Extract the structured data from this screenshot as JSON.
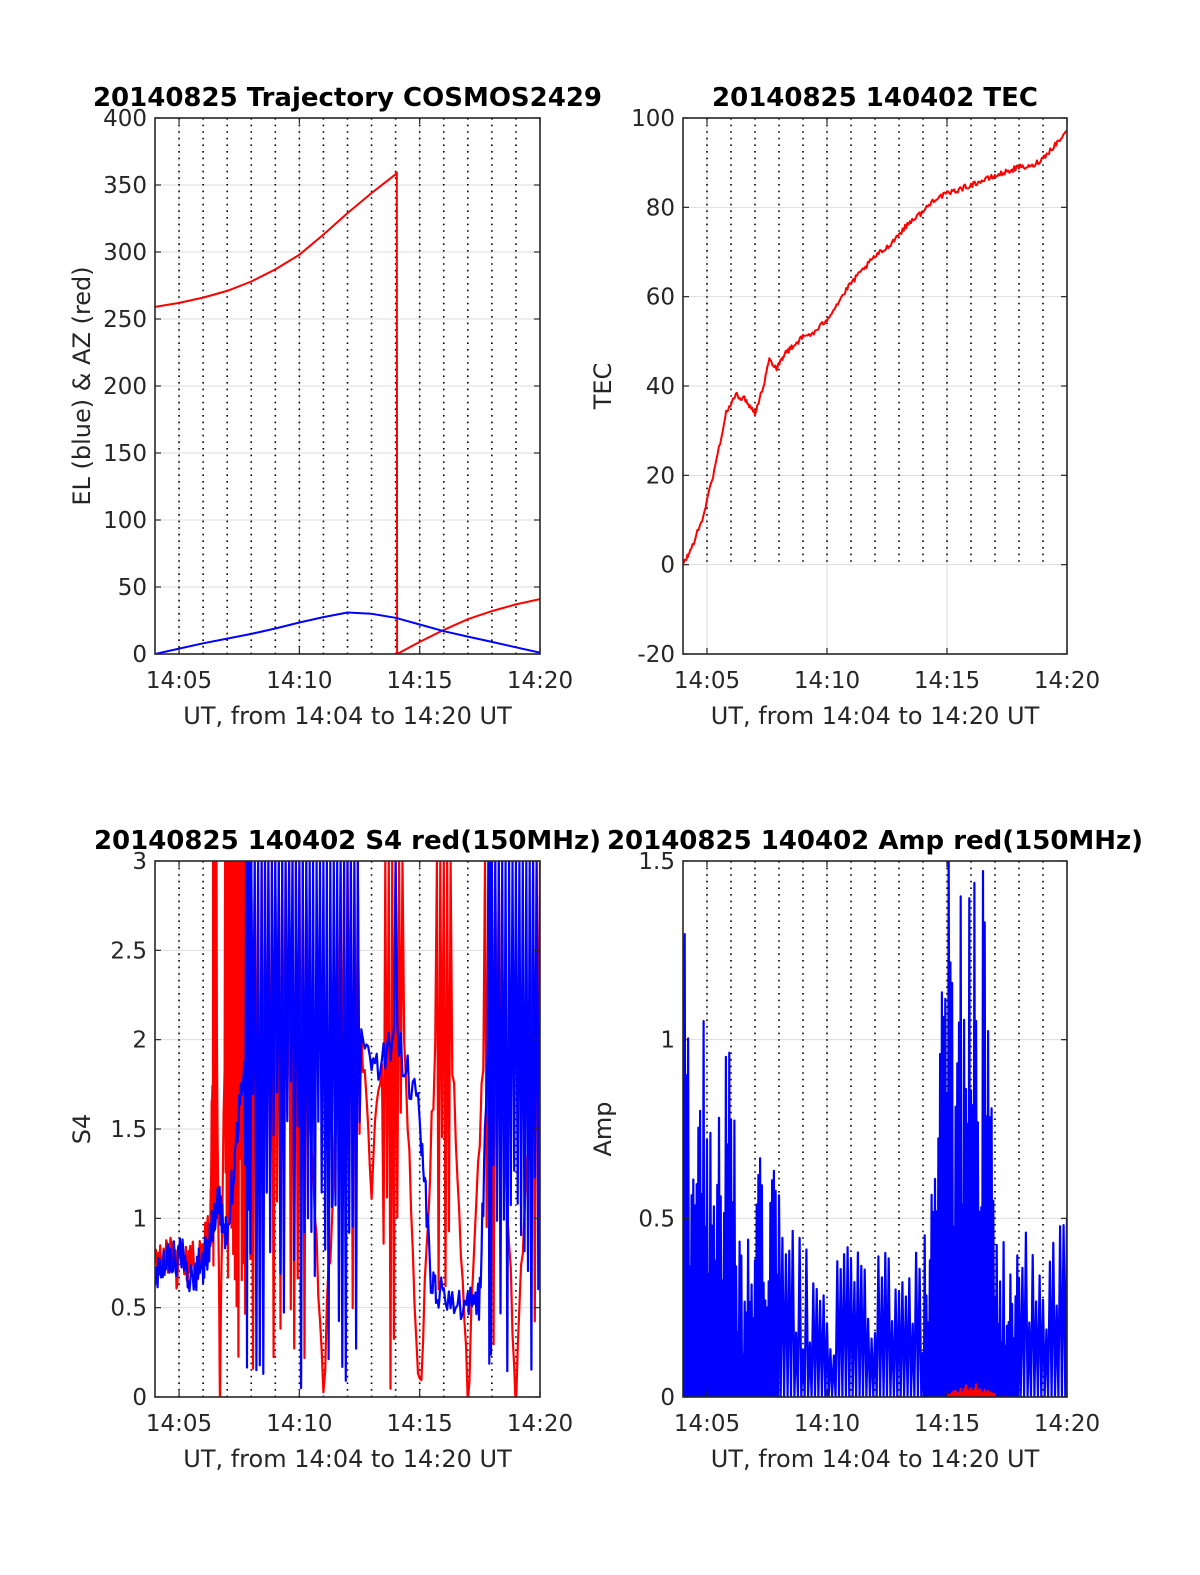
{
  "figure": {
    "background": "#ffffff"
  },
  "chart_data": [
    {
      "id": "trajectory",
      "type": "line",
      "title": "20140825 Trajectory COSMOS2429",
      "xlabel": "UT, from 14:04 to 14:20 UT",
      "ylabel": "EL (blue) & AZ (red)",
      "xlim_minutes": [
        0,
        16
      ],
      "ylim": [
        0,
        400
      ],
      "xticks": [
        {
          "at": 1,
          "label": "14:05"
        },
        {
          "at": 6,
          "label": "14:10"
        },
        {
          "at": 11,
          "label": "14:15"
        },
        {
          "at": 16,
          "label": "14:20"
        }
      ],
      "yticks": [
        0,
        50,
        100,
        150,
        200,
        250,
        300,
        350,
        400
      ],
      "grid": true,
      "dotted_vlines_minutes": [
        1,
        2,
        3,
        4,
        5,
        6,
        7,
        8,
        9,
        10,
        11,
        12,
        13,
        14,
        15
      ],
      "series": [
        {
          "color": "#ff0000",
          "x": [
            0,
            1,
            2,
            3,
            4,
            5,
            6,
            7,
            8,
            9,
            10,
            10.05
          ],
          "y": [
            259,
            262,
            266,
            271,
            278,
            287,
            298,
            313,
            329,
            344,
            358,
            360
          ]
        },
        {
          "color": "#ff0000",
          "x": [
            10.05,
            10.06,
            11,
            12,
            13,
            14,
            15,
            16
          ],
          "y": [
            360,
            0,
            9,
            18,
            26,
            32,
            37,
            41
          ]
        },
        {
          "color": "#0000ff",
          "x": [
            0,
            1,
            2,
            3,
            4,
            5,
            6,
            7,
            8,
            9,
            10,
            11,
            12,
            13,
            14,
            15,
            16
          ],
          "y": [
            0,
            4,
            8,
            11.5,
            15,
            19,
            23.5,
            27.5,
            31,
            30,
            27,
            22,
            17,
            13,
            9,
            5,
            1
          ]
        }
      ]
    },
    {
      "id": "tec",
      "type": "line",
      "title": "20140825 140402 TEC",
      "xlabel": "UT, from 14:04 to 14:20 UT",
      "ylabel": "TEC",
      "xlim_minutes": [
        0,
        16
      ],
      "ylim": [
        -20,
        100
      ],
      "xticks": [
        {
          "at": 1,
          "label": "14:05"
        },
        {
          "at": 6,
          "label": "14:10"
        },
        {
          "at": 11,
          "label": "14:15"
        },
        {
          "at": 16,
          "label": "14:20"
        }
      ],
      "yticks": [
        -20,
        0,
        20,
        40,
        60,
        80,
        100
      ],
      "grid": true,
      "dotted_vlines_minutes": [
        1,
        2,
        3,
        4,
        5,
        6,
        7,
        8,
        9,
        10,
        11,
        12,
        13,
        14,
        15
      ],
      "series": [
        {
          "color": "#ff0000",
          "x": [
            0,
            0.3,
            0.8,
            1.3,
            1.8,
            2.2,
            2.6,
            3.0,
            3.3,
            3.6,
            3.9,
            4.2,
            4.6,
            5.0,
            5.5,
            6.0,
            6.5,
            7.0,
            7.5,
            8.0,
            8.5,
            9.0,
            9.5,
            10.0,
            10.5,
            11.0,
            11.5,
            12.0,
            12.5,
            13.0,
            13.5,
            14.0,
            14.5,
            15.0,
            15.5,
            16.0
          ],
          "y": [
            0,
            3,
            10,
            21,
            34,
            38,
            37,
            34,
            39,
            46,
            44,
            47,
            49,
            51,
            52,
            55,
            59,
            63,
            66,
            69,
            71,
            74,
            77,
            79,
            82,
            83,
            84,
            85,
            86,
            87,
            88,
            89,
            89,
            91,
            94,
            97
          ]
        }
      ]
    },
    {
      "id": "s4",
      "type": "line",
      "title": "20140825 140402 S4 red(150MHz)",
      "xlabel": "UT, from 14:04 to 14:20 UT",
      "ylabel": "S4",
      "xlim_minutes": [
        0,
        16
      ],
      "ylim": [
        0,
        3
      ],
      "xticks": [
        {
          "at": 1,
          "label": "14:05"
        },
        {
          "at": 6,
          "label": "14:10"
        },
        {
          "at": 11,
          "label": "14:15"
        },
        {
          "at": 16,
          "label": "14:20"
        }
      ],
      "yticks": [
        0,
        0.5,
        1,
        1.5,
        2,
        2.5,
        3
      ],
      "ytick_labels": [
        "0",
        "0.5",
        "1",
        "1.5",
        "2",
        "2.5",
        "3"
      ],
      "grid": true,
      "dotted_vlines_minutes": [
        1,
        2,
        3,
        4,
        5,
        6,
        7,
        8,
        9,
        10,
        11,
        12,
        13,
        14,
        15
      ],
      "series": [
        {
          "color": "#ff0000",
          "x": [
            0,
            0.5,
            1,
            1.5,
            2.0,
            2.3,
            2.5,
            2.7,
            3,
            3.5,
            4,
            5,
            6,
            7,
            8,
            9,
            10,
            11,
            12,
            13,
            14,
            15,
            16
          ],
          "y": [
            0.75,
            0.8,
            0.7,
            0.75,
            0.8,
            1.0,
            3,
            0,
            3,
            2.2,
            3,
            2.5,
            3,
            0,
            3,
            1.2,
            3,
            0,
            3,
            0,
            3,
            0,
            3
          ]
        },
        {
          "color": "#0000ff",
          "x": [
            0,
            0.5,
            1,
            1.5,
            2.0,
            2.3,
            2.6,
            3.0,
            3.5,
            4,
            5,
            6,
            7,
            8,
            9,
            10,
            11,
            11.5,
            12,
            13,
            13.5,
            14,
            15,
            16
          ],
          "y": [
            0.7,
            0.75,
            0.8,
            0.7,
            0.75,
            0.9,
            1.1,
            0.9,
            1.6,
            2.4,
            2.8,
            2.2,
            2.6,
            2.2,
            1.8,
            2.0,
            1.6,
            0.6,
            0.55,
            0.5,
            0.55,
            2.6,
            2.9,
            2.8
          ]
        }
      ]
    },
    {
      "id": "amp",
      "type": "line",
      "title": "20140825 140402 Amp red(150MHz)",
      "xlabel": "UT, from 14:04 to 14:20 UT",
      "ylabel": "Amp",
      "xlim_minutes": [
        0,
        16
      ],
      "ylim": [
        0,
        1.5
      ],
      "xticks": [
        {
          "at": 1,
          "label": "14:05"
        },
        {
          "at": 6,
          "label": "14:10"
        },
        {
          "at": 11,
          "label": "14:15"
        },
        {
          "at": 16,
          "label": "14:20"
        }
      ],
      "yticks": [
        0,
        0.5,
        1,
        1.5
      ],
      "ytick_labels": [
        "0",
        "0.5",
        "1",
        "1.5"
      ],
      "grid": true,
      "dotted_vlines_minutes": [
        1,
        2,
        3,
        4,
        5,
        6,
        7,
        8,
        9,
        10,
        11,
        12,
        13,
        14,
        15
      ],
      "series": [
        {
          "color": "#0000ff",
          "x": [
            0,
            0.5,
            1,
            1.5,
            2.0,
            2.5,
            3.0,
            3.5,
            4,
            5,
            6,
            7,
            8,
            9,
            10,
            10.5,
            11.0,
            11.5,
            12.0,
            12.5,
            13.0,
            13.5,
            14,
            15,
            16
          ],
          "y": [
            1.15,
            0.8,
            0.95,
            0.75,
            0.8,
            0.25,
            0.5,
            0.6,
            0.5,
            0.35,
            0.3,
            0.35,
            0.4,
            0.3,
            0.35,
            0.5,
            1.35,
            1.2,
            1.4,
            1.3,
            0.4,
            0.35,
            0.4,
            0.3,
            0.5
          ]
        },
        {
          "color": "#ff0000",
          "x": [
            11.0,
            11.5,
            12.0,
            12.5,
            13.0
          ],
          "y": [
            0.005,
            0.02,
            0.04,
            0.02,
            0.01
          ]
        }
      ]
    }
  ]
}
